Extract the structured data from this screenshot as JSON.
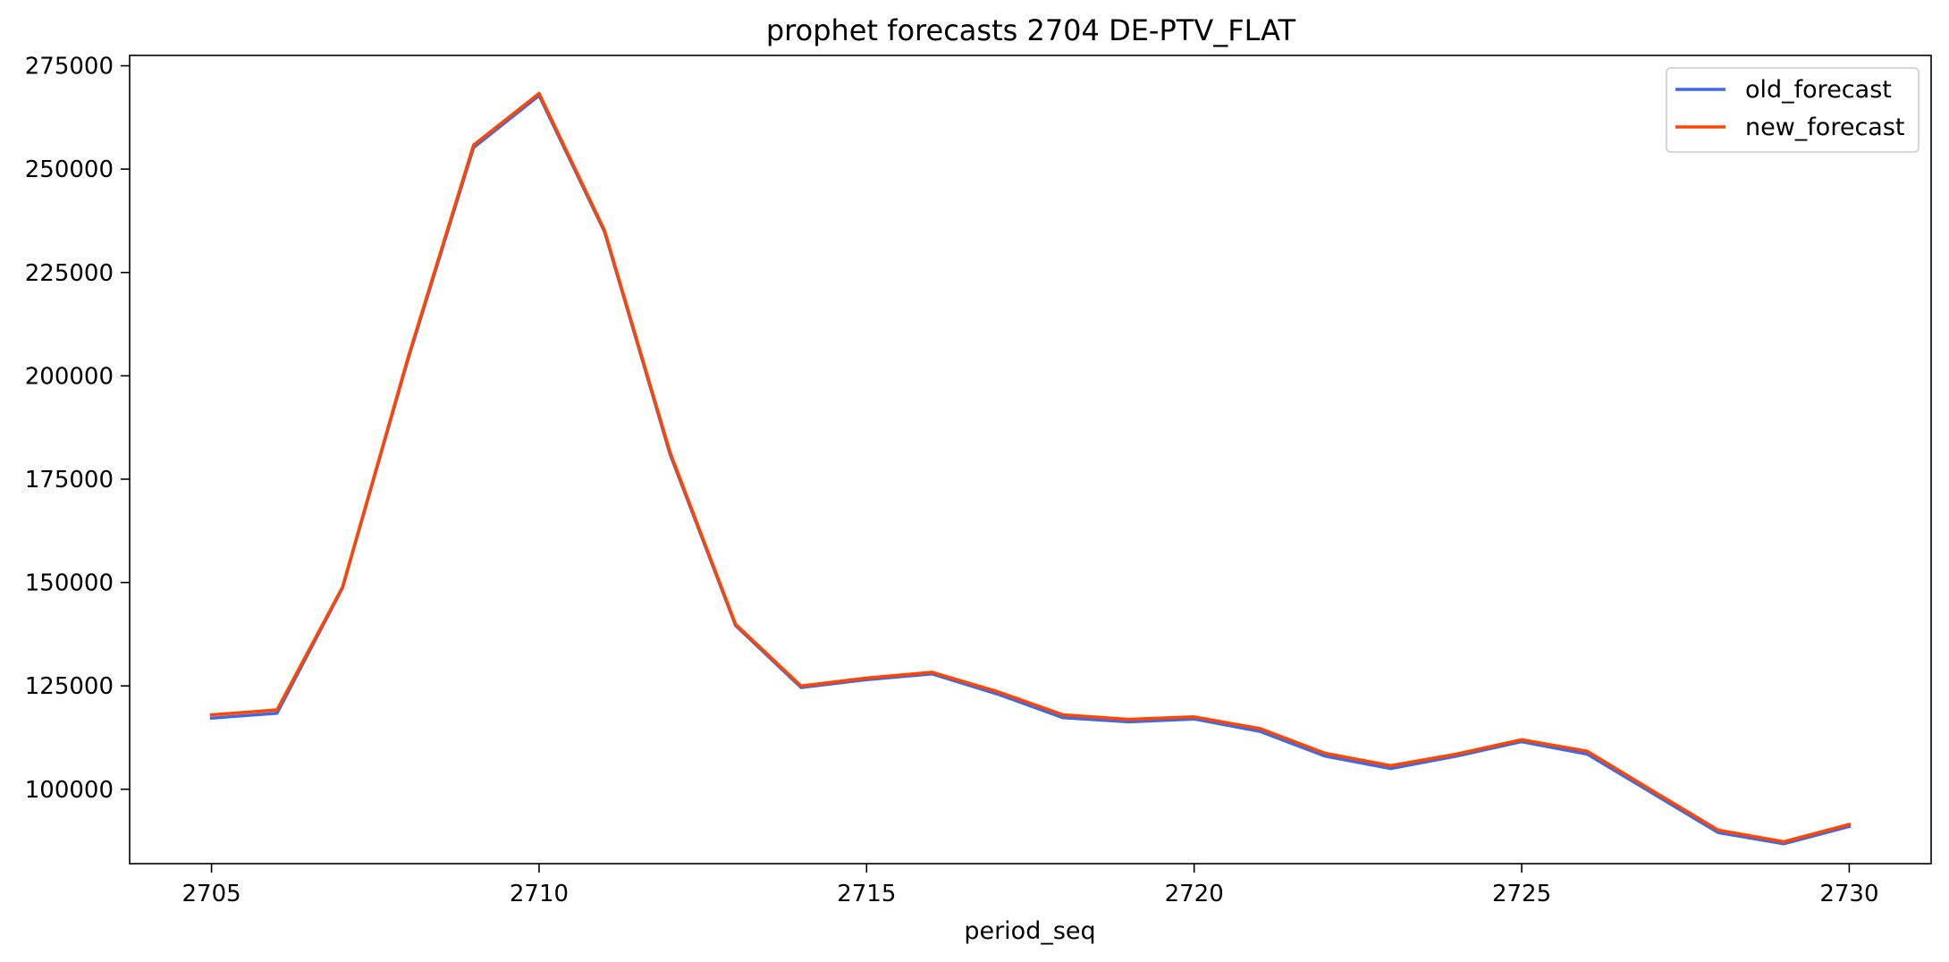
{
  "chart_data": {
    "type": "line",
    "title": "prophet forecasts 2704 DE-PTV_FLAT",
    "xlabel": "period_seq",
    "ylabel": "",
    "x": [
      2705,
      2706,
      2707,
      2708,
      2709,
      2710,
      2711,
      2712,
      2713,
      2714,
      2715,
      2716,
      2717,
      2718,
      2719,
      2720,
      2721,
      2722,
      2723,
      2724,
      2725,
      2726,
      2727,
      2728,
      2729,
      2730
    ],
    "xlim": [
      2703.75,
      2731.25
    ],
    "ylim": [
      82000,
      277500
    ],
    "xticks": [
      2705,
      2710,
      2715,
      2720,
      2725,
      2730
    ],
    "yticks": [
      100000,
      125000,
      150000,
      175000,
      200000,
      225000,
      250000,
      275000
    ],
    "grid": false,
    "legend_position": "top-right",
    "series": [
      {
        "name": "old_forecast",
        "color": "#4169e1",
        "values": [
          117200,
          118400,
          148700,
          204000,
          255200,
          267800,
          234800,
          181000,
          139600,
          124600,
          126500,
          127900,
          123000,
          117300,
          116300,
          117000,
          114000,
          108000,
          105000,
          108000,
          111500,
          108500,
          99000,
          89500,
          86800,
          91000
        ]
      },
      {
        "name": "new_forecast",
        "color": "#ff4500",
        "values": [
          118000,
          119200,
          148900,
          204400,
          255800,
          268300,
          235200,
          181500,
          139900,
          125000,
          126900,
          128300,
          123600,
          118000,
          116900,
          117500,
          114700,
          108700,
          105700,
          108500,
          112000,
          109200,
          99600,
          90100,
          87300,
          91500
        ]
      }
    ]
  }
}
